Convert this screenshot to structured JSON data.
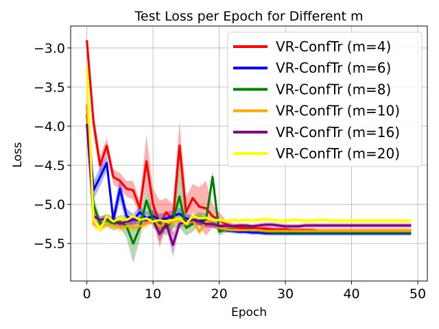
{
  "chart_data": {
    "type": "line",
    "title": "Test Loss per Epoch for Different m",
    "xlabel": "Epoch",
    "ylabel": "Loss",
    "xlim": [
      -2.45,
      51.45
    ],
    "ylim": [
      -5.98,
      -2.72
    ],
    "xticks": [
      0,
      10,
      20,
      30,
      40,
      50
    ],
    "yticks": [
      -3.0,
      -3.5,
      -4.0,
      -4.5,
      -5.0,
      -5.5
    ],
    "xtick_labels": [
      "0",
      "10",
      "20",
      "30",
      "40",
      "50"
    ],
    "ytick_labels": [
      "−3.0",
      "−3.5",
      "−4.0",
      "−4.5",
      "−5.0",
      "−5.5"
    ],
    "grid": true,
    "legend_position": "top-right",
    "series": [
      {
        "name": "VR-ConfTr (m=4)",
        "color": "#ff0000",
        "x": [
          0,
          1,
          2,
          3,
          4,
          5,
          6,
          7,
          8,
          9,
          10,
          11,
          12,
          13,
          14,
          15,
          16,
          17,
          18,
          19,
          20,
          21,
          22,
          23,
          24,
          25,
          26,
          27,
          28,
          29,
          30,
          31,
          32,
          33,
          34,
          35,
          36,
          37,
          38,
          39,
          40,
          41,
          42,
          43,
          44,
          45,
          46,
          47,
          48,
          49
        ],
        "values": [
          -2.9,
          -3.95,
          -4.5,
          -4.25,
          -4.65,
          -4.7,
          -4.8,
          -4.82,
          -5.05,
          -4.45,
          -5.0,
          -5.25,
          -5.1,
          -5.2,
          -4.25,
          -5.1,
          -4.92,
          -5.03,
          -5.05,
          -5.15,
          -5.2,
          -5.25,
          -5.28,
          -5.3,
          -5.3,
          -5.3,
          -5.31,
          -5.31,
          -5.32,
          -5.32,
          -5.32,
          -5.33,
          -5.33,
          -5.33,
          -5.33,
          -5.34,
          -5.34,
          -5.34,
          -5.34,
          -5.34,
          -5.34,
          -5.34,
          -5.34,
          -5.34,
          -5.34,
          -5.34,
          -5.34,
          -5.34,
          -5.34,
          -5.34
        ],
        "band": [
          0.0,
          0.15,
          0.12,
          0.1,
          0.1,
          0.1,
          0.1,
          0.12,
          0.1,
          0.35,
          0.2,
          0.3,
          0.18,
          0.2,
          0.3,
          0.2,
          0.18,
          0.25,
          0.35,
          0.15,
          0.1,
          0.05,
          0.04,
          0.03,
          0.03,
          0.03,
          0.03,
          0.03,
          0.03,
          0.03,
          0.03,
          0.03,
          0.03,
          0.03,
          0.03,
          0.03,
          0.03,
          0.03,
          0.03,
          0.03,
          0.03,
          0.03,
          0.03,
          0.03,
          0.03,
          0.03,
          0.03,
          0.03,
          0.03,
          0.03
        ]
      },
      {
        "name": "VR-ConfTr (m=6)",
        "color": "#0000ff",
        "x": [
          0,
          1,
          2,
          3,
          4,
          5,
          6,
          7,
          8,
          9,
          10,
          11,
          12,
          13,
          14,
          15,
          16,
          17,
          18,
          19,
          20,
          21,
          22,
          23,
          24,
          25,
          26,
          27,
          28,
          29,
          30,
          31,
          32,
          33,
          34,
          35,
          36,
          37,
          38,
          39,
          40,
          41,
          42,
          43,
          44,
          45,
          46,
          47,
          48,
          49
        ],
        "values": [
          -3.75,
          -4.82,
          -4.65,
          -4.47,
          -5.2,
          -4.8,
          -5.15,
          -5.2,
          -5.1,
          -5.18,
          -5.15,
          -5.2,
          -5.18,
          -5.15,
          -5.12,
          -5.18,
          -5.2,
          -5.2,
          -5.22,
          -5.25,
          -5.3,
          -5.33,
          -5.34,
          -5.35,
          -5.35,
          -5.36,
          -5.36,
          -5.37,
          -5.37,
          -5.37,
          -5.37,
          -5.37,
          -5.37,
          -5.37,
          -5.37,
          -5.37,
          -5.37,
          -5.37,
          -5.37,
          -5.37,
          -5.37,
          -5.37,
          -5.37,
          -5.37,
          -5.37,
          -5.37,
          -5.37,
          -5.37,
          -5.37,
          -5.37
        ],
        "band": [
          0.0,
          0.12,
          0.12,
          0.1,
          0.1,
          0.15,
          0.1,
          0.08,
          0.08,
          0.08,
          0.08,
          0.08,
          0.08,
          0.08,
          0.08,
          0.06,
          0.06,
          0.06,
          0.06,
          0.05,
          0.04,
          0.03,
          0.03,
          0.03,
          0.03,
          0.03,
          0.03,
          0.03,
          0.03,
          0.03,
          0.03,
          0.03,
          0.03,
          0.03,
          0.03,
          0.03,
          0.03,
          0.03,
          0.03,
          0.03,
          0.03,
          0.03,
          0.03,
          0.03,
          0.03,
          0.03,
          0.03,
          0.03,
          0.03,
          0.03
        ]
      },
      {
        "name": "VR-ConfTr (m=8)",
        "color": "#008000",
        "x": [
          0,
          1,
          2,
          3,
          4,
          5,
          6,
          7,
          8,
          9,
          10,
          11,
          12,
          13,
          14,
          15,
          16,
          17,
          18,
          19,
          20,
          21,
          22,
          23,
          24,
          25,
          26,
          27,
          28,
          29,
          30,
          31,
          32,
          33,
          34,
          35,
          36,
          37,
          38,
          39,
          40,
          41,
          42,
          43,
          44,
          45,
          46,
          47,
          48,
          49
        ],
        "values": [
          -3.85,
          -5.0,
          -5.25,
          -5.2,
          -5.25,
          -5.22,
          -5.28,
          -5.5,
          -5.3,
          -4.95,
          -5.2,
          -5.25,
          -5.3,
          -5.2,
          -4.9,
          -5.3,
          -5.25,
          -5.18,
          -5.2,
          -4.65,
          -5.35,
          -5.32,
          -5.32,
          -5.33,
          -5.32,
          -5.32,
          -5.34,
          -5.35,
          -5.36,
          -5.36,
          -5.36,
          -5.36,
          -5.36,
          -5.36,
          -5.36,
          -5.36,
          -5.36,
          -5.36,
          -5.36,
          -5.36,
          -5.36,
          -5.36,
          -5.36,
          -5.36,
          -5.36,
          -5.36,
          -5.36,
          -5.36,
          -5.36,
          -5.36
        ],
        "band": [
          0.0,
          0.1,
          0.08,
          0.08,
          0.08,
          0.08,
          0.15,
          0.25,
          0.15,
          0.15,
          0.1,
          0.1,
          0.1,
          0.1,
          0.4,
          0.1,
          0.1,
          0.08,
          0.08,
          0.08,
          0.05,
          0.04,
          0.03,
          0.03,
          0.03,
          0.03,
          0.03,
          0.03,
          0.03,
          0.03,
          0.03,
          0.03,
          0.03,
          0.03,
          0.03,
          0.03,
          0.03,
          0.03,
          0.03,
          0.03,
          0.03,
          0.03,
          0.03,
          0.03,
          0.03,
          0.03,
          0.03,
          0.03,
          0.03,
          0.03
        ]
      },
      {
        "name": "VR-ConfTr (m=10)",
        "color": "#ffa500",
        "x": [
          0,
          1,
          2,
          3,
          4,
          5,
          6,
          7,
          8,
          9,
          10,
          11,
          12,
          13,
          14,
          15,
          16,
          17,
          18,
          19,
          20,
          21,
          22,
          23,
          24,
          25,
          26,
          27,
          28,
          29,
          30,
          31,
          32,
          33,
          34,
          35,
          36,
          37,
          38,
          39,
          40,
          41,
          42,
          43,
          44,
          45,
          46,
          47,
          48,
          49
        ],
        "values": [
          -3.72,
          -5.25,
          -5.3,
          -5.25,
          -5.27,
          -5.3,
          -5.28,
          -5.3,
          -5.28,
          -5.25,
          -5.2,
          -5.28,
          -5.25,
          -5.22,
          -5.2,
          -5.25,
          -5.2,
          -5.35,
          -5.22,
          -5.25,
          -5.3,
          -5.32,
          -5.33,
          -5.33,
          -5.33,
          -5.33,
          -5.33,
          -5.34,
          -5.34,
          -5.34,
          -5.34,
          -5.34,
          -5.34,
          -5.34,
          -5.34,
          -5.34,
          -5.34,
          -5.34,
          -5.34,
          -5.34,
          -5.34,
          -5.34,
          -5.34,
          -5.34,
          -5.34,
          -5.34,
          -5.34,
          -5.34,
          -5.34,
          -5.34
        ],
        "band": [
          0.0,
          0.06,
          0.05,
          0.05,
          0.05,
          0.05,
          0.05,
          0.05,
          0.05,
          0.05,
          0.05,
          0.05,
          0.05,
          0.05,
          0.05,
          0.05,
          0.05,
          0.05,
          0.05,
          0.04,
          0.03,
          0.03,
          0.03,
          0.03,
          0.03,
          0.03,
          0.03,
          0.03,
          0.03,
          0.03,
          0.03,
          0.03,
          0.03,
          0.03,
          0.03,
          0.03,
          0.03,
          0.03,
          0.03,
          0.03,
          0.03,
          0.03,
          0.03,
          0.03,
          0.03,
          0.03,
          0.03,
          0.03,
          0.03,
          0.03
        ]
      },
      {
        "name": "VR-ConfTr (m=16)",
        "color": "#800080",
        "x": [
          0,
          1,
          2,
          3,
          4,
          5,
          6,
          7,
          8,
          9,
          10,
          11,
          12,
          13,
          14,
          15,
          16,
          17,
          18,
          19,
          20,
          21,
          22,
          23,
          24,
          25,
          26,
          27,
          28,
          29,
          30,
          31,
          32,
          33,
          34,
          35,
          36,
          37,
          38,
          39,
          40,
          41,
          42,
          43,
          44,
          45,
          46,
          47,
          48,
          49
        ],
        "values": [
          -3.97,
          -5.15,
          -5.2,
          -5.18,
          -5.2,
          -5.25,
          -5.22,
          -5.2,
          -5.2,
          -5.2,
          -5.2,
          -5.38,
          -5.25,
          -5.52,
          -5.25,
          -5.22,
          -5.2,
          -5.22,
          -5.25,
          -5.25,
          -5.28,
          -5.27,
          -5.28,
          -5.27,
          -5.27,
          -5.28,
          -5.27,
          -5.26,
          -5.26,
          -5.27,
          -5.28,
          -5.28,
          -5.28,
          -5.27,
          -5.27,
          -5.27,
          -5.27,
          -5.27,
          -5.27,
          -5.27,
          -5.27,
          -5.27,
          -5.27,
          -5.27,
          -5.27,
          -5.27,
          -5.27,
          -5.27,
          -5.27,
          -5.27
        ],
        "band": [
          0.0,
          0.06,
          0.05,
          0.05,
          0.05,
          0.05,
          0.05,
          0.05,
          0.05,
          0.05,
          0.05,
          0.1,
          0.05,
          0.15,
          0.05,
          0.05,
          0.05,
          0.05,
          0.05,
          0.04,
          0.03,
          0.03,
          0.03,
          0.03,
          0.03,
          0.03,
          0.03,
          0.03,
          0.03,
          0.03,
          0.03,
          0.03,
          0.03,
          0.03,
          0.03,
          0.03,
          0.03,
          0.03,
          0.03,
          0.03,
          0.03,
          0.03,
          0.03,
          0.03,
          0.03,
          0.03,
          0.03,
          0.03,
          0.03,
          0.03
        ]
      },
      {
        "name": "VR-ConfTr (m=20)",
        "color": "#ffff00",
        "x": [
          0,
          1,
          2,
          3,
          4,
          5,
          6,
          7,
          8,
          9,
          10,
          11,
          12,
          13,
          14,
          15,
          16,
          17,
          18,
          19,
          20,
          21,
          22,
          23,
          24,
          25,
          26,
          27,
          28,
          29,
          30,
          31,
          32,
          33,
          34,
          35,
          36,
          37,
          38,
          39,
          40,
          41,
          42,
          43,
          44,
          45,
          46,
          47,
          48,
          49
        ],
        "values": [
          -3.25,
          -5.2,
          -5.32,
          -5.15,
          -5.22,
          -5.18,
          -5.2,
          -5.15,
          -5.2,
          -5.18,
          -5.22,
          -5.2,
          -5.22,
          -5.2,
          -5.18,
          -5.25,
          -5.15,
          -5.18,
          -5.17,
          -5.2,
          -5.2,
          -5.22,
          -5.2,
          -5.21,
          -5.2,
          -5.21,
          -5.2,
          -5.19,
          -5.2,
          -5.21,
          -5.21,
          -5.2,
          -5.2,
          -5.21,
          -5.21,
          -5.2,
          -5.2,
          -5.21,
          -5.21,
          -5.21,
          -5.21,
          -5.21,
          -5.21,
          -5.21,
          -5.21,
          -5.21,
          -5.21,
          -5.21,
          -5.21,
          -5.21
        ],
        "band": [
          0.0,
          0.05,
          0.05,
          0.04,
          0.04,
          0.04,
          0.04,
          0.04,
          0.04,
          0.04,
          0.04,
          0.04,
          0.04,
          0.04,
          0.04,
          0.04,
          0.04,
          0.04,
          0.04,
          0.03,
          0.03,
          0.03,
          0.03,
          0.03,
          0.03,
          0.03,
          0.03,
          0.03,
          0.03,
          0.03,
          0.03,
          0.03,
          0.03,
          0.03,
          0.03,
          0.03,
          0.03,
          0.03,
          0.03,
          0.03,
          0.03,
          0.03,
          0.03,
          0.03,
          0.03,
          0.03,
          0.03,
          0.03,
          0.03,
          0.03
        ]
      }
    ]
  }
}
